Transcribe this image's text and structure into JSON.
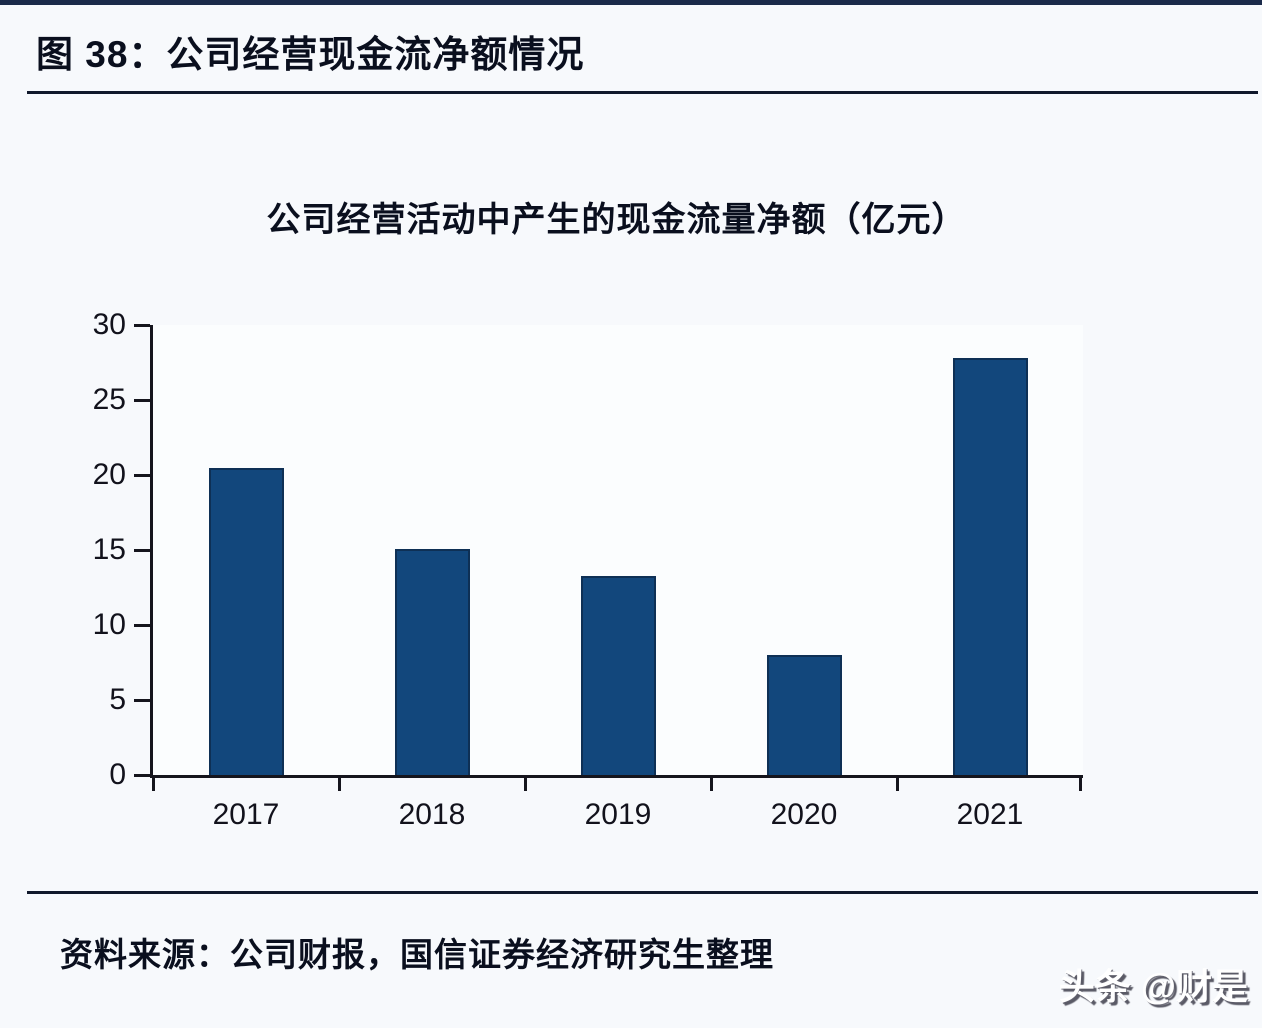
{
  "page": {
    "background": "#f7f9fc",
    "accent_line_color": "#1b2a4a"
  },
  "header": {
    "figure_title": "图 38：公司经营现金流净额情况"
  },
  "chart_data": {
    "type": "bar",
    "title": "公司经营活动中产生的现金流量净额（亿元）",
    "categories": [
      "2017",
      "2018",
      "2019",
      "2020",
      "2021"
    ],
    "values": [
      20.5,
      15.1,
      13.3,
      8.0,
      27.8
    ],
    "yticks": [
      0,
      5,
      10,
      15,
      20,
      25,
      30
    ],
    "ylim": [
      0,
      30
    ],
    "xlabel": "",
    "ylabel": "",
    "legend": "none",
    "grid": false,
    "bar_color": "#12477c",
    "bar_border_color": "#0e3055",
    "axis_color": "#15151d",
    "unit": "亿元"
  },
  "footer": {
    "source": "资料来源：公司财报，国信证券经济研究生整理"
  },
  "watermark": {
    "text": "头条 @财是"
  }
}
